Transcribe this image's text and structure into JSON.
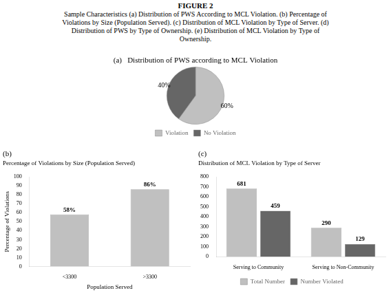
{
  "title": "FIGURE 2",
  "subtitle": [
    "Sample Characteristics (a) Distribution of PWS According to MCL Violation. (b) Percentage of",
    "Violations by Size (Population Served). (c) Distribution of MCL Violation by Type of Server. (d)",
    "Distribution of PWS by Type of Ownership. (e) Distribution of MCL Violation by Type of",
    "Ownership."
  ],
  "chart_data": [
    {
      "type": "pie",
      "title": "(a)   Distribution of PWS according to MCL Violation",
      "categories": [
        "Violation",
        "No Violation"
      ],
      "values": [
        60,
        40
      ],
      "value_labels": [
        "60%",
        "40%"
      ],
      "colors": [
        "#c0c0c0",
        "#666666"
      ],
      "data_labels": true,
      "legend": "bottom"
    },
    {
      "type": "bar",
      "title": "(b)",
      "subtitle": "Percentage of Violations by Size (Population Served)",
      "categories": [
        "<3300",
        ">3300"
      ],
      "values": [
        58,
        86
      ],
      "value_labels": [
        "58%",
        "86%"
      ],
      "color": "#c0c0c0",
      "data_labels": true,
      "xlabel": "Population Served",
      "ylabel": "Percentage of Violations",
      "ylim": [
        0,
        100
      ],
      "yticks": [
        0,
        10,
        20,
        30,
        40,
        50,
        60,
        70,
        80,
        90,
        100
      ],
      "grid": false
    },
    {
      "type": "bar",
      "title": "(c)",
      "subtitle": "Distribution of MCL Violation by Type of Server",
      "categories": [
        "Serving to Community",
        "Serving to Non-Community"
      ],
      "series": [
        {
          "name": "Total Number",
          "color": "#c0c0c0",
          "values": [
            681,
            290
          ]
        },
        {
          "name": "Number Violated",
          "color": "#666666",
          "values": [
            459,
            129
          ]
        }
      ],
      "data_labels": true,
      "ylim": [
        0,
        800
      ],
      "yticks": [
        0,
        100,
        200,
        300,
        400,
        500,
        600,
        700,
        800
      ],
      "legend": "bottom",
      "grid": false
    }
  ]
}
